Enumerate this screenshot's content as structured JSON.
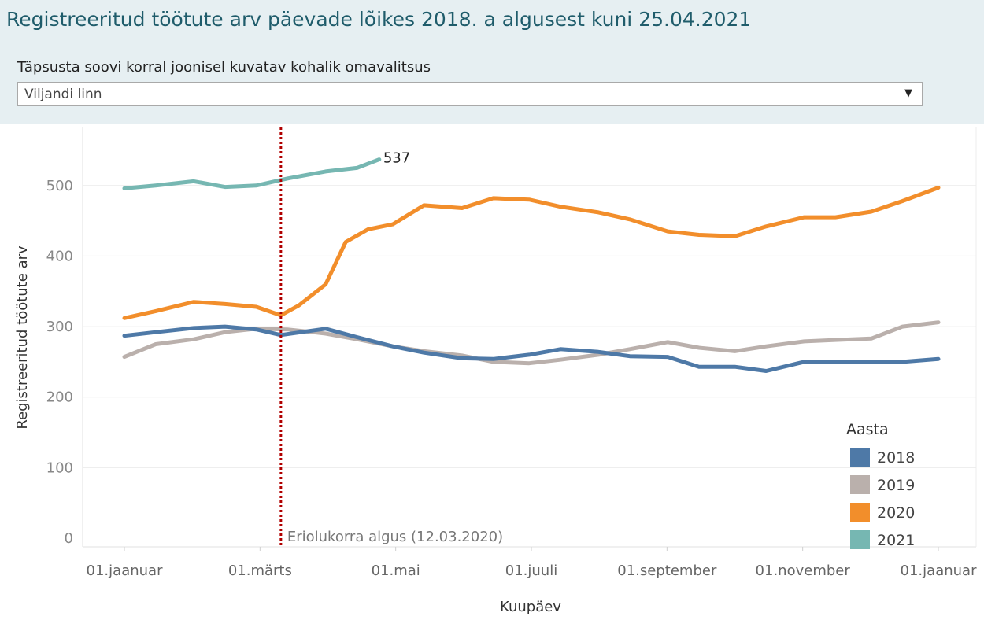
{
  "header": {
    "title": "Registreeritud töötute arv päevade lõikes 2018. a algusest kuni 25.04.2021",
    "filter_label": "Täpsusta soovi korral  joonisel kuvatav kohalik omavalitsus",
    "filter_value": "Viljandi linn"
  },
  "chart_data": {
    "type": "line",
    "title": "Registreeritud töötute arv päevade lõikes 2018. a algusest kuni 25.04.2021",
    "xlabel": "Kuupäev",
    "ylabel": "Registreeritud töötute arv",
    "x_ticks": [
      "01.jaanuar",
      "01.märts",
      "01.mai",
      "01.juuli",
      "01.september",
      "01.november",
      "01.jaanuar"
    ],
    "y_ticks": [
      0,
      100,
      200,
      300,
      400,
      500
    ],
    "ylim": [
      0,
      560
    ],
    "xlim": [
      "01.01",
      "31.12"
    ],
    "legend_title": "Aasta",
    "legend_position": "bottom-right",
    "grid": "horizontal",
    "end_label": "537",
    "annotation": {
      "date": "12.03",
      "text": "Eriolukorra algus (12.03.2020)",
      "color": "#b00000"
    },
    "series": [
      {
        "name": "2018",
        "color": "#4e79a7",
        "x": [
          "01.01",
          "15.01",
          "01.02",
          "15.02",
          "01.03",
          "12.03",
          "01.04",
          "15.04",
          "01.05",
          "15.05",
          "01.06",
          "15.06",
          "01.07",
          "15.07",
          "01.08",
          "15.08",
          "01.09",
          "15.09",
          "01.10",
          "15.10",
          "01.11",
          "15.11",
          "01.12",
          "15.12",
          "31.12"
        ],
        "y": [
          287,
          292,
          298,
          300,
          296,
          288,
          297,
          285,
          272,
          263,
          255,
          254,
          260,
          268,
          264,
          258,
          257,
          243,
          243,
          237,
          250,
          250,
          250,
          250,
          254
        ]
      },
      {
        "name": "2019",
        "color": "#bab0ac",
        "x": [
          "01.01",
          "15.01",
          "01.02",
          "15.02",
          "01.03",
          "15.03",
          "01.04",
          "15.04",
          "01.05",
          "15.05",
          "01.06",
          "15.06",
          "01.07",
          "15.07",
          "01.08",
          "15.08",
          "01.09",
          "15.09",
          "01.10",
          "15.10",
          "01.11",
          "15.11",
          "01.12",
          "15.12",
          "31.12"
        ],
        "y": [
          257,
          275,
          282,
          292,
          297,
          296,
          290,
          282,
          272,
          265,
          259,
          250,
          248,
          253,
          260,
          268,
          278,
          270,
          265,
          272,
          279,
          281,
          283,
          300,
          306
        ]
      },
      {
        "name": "2020",
        "color": "#f28e2b",
        "x": [
          "01.01",
          "15.01",
          "01.02",
          "15.02",
          "01.03",
          "12.03",
          "20.03",
          "01.04",
          "10.04",
          "20.04",
          "01.05",
          "15.05",
          "01.06",
          "15.06",
          "01.07",
          "15.07",
          "01.08",
          "15.08",
          "01.09",
          "15.09",
          "01.10",
          "15.10",
          "01.11",
          "15.11",
          "01.12",
          "15.12",
          "31.12"
        ],
        "y": [
          312,
          322,
          335,
          332,
          328,
          316,
          330,
          360,
          420,
          438,
          445,
          472,
          468,
          482,
          480,
          470,
          462,
          452,
          435,
          430,
          428,
          442,
          455,
          455,
          463,
          478,
          497
        ]
      },
      {
        "name": "2021",
        "color": "#76b7b2",
        "x": [
          "01.01",
          "15.01",
          "01.02",
          "15.02",
          "01.03",
          "15.03",
          "01.04",
          "15.04",
          "25.04"
        ],
        "y": [
          496,
          500,
          506,
          498,
          500,
          510,
          520,
          525,
          537
        ]
      }
    ]
  }
}
